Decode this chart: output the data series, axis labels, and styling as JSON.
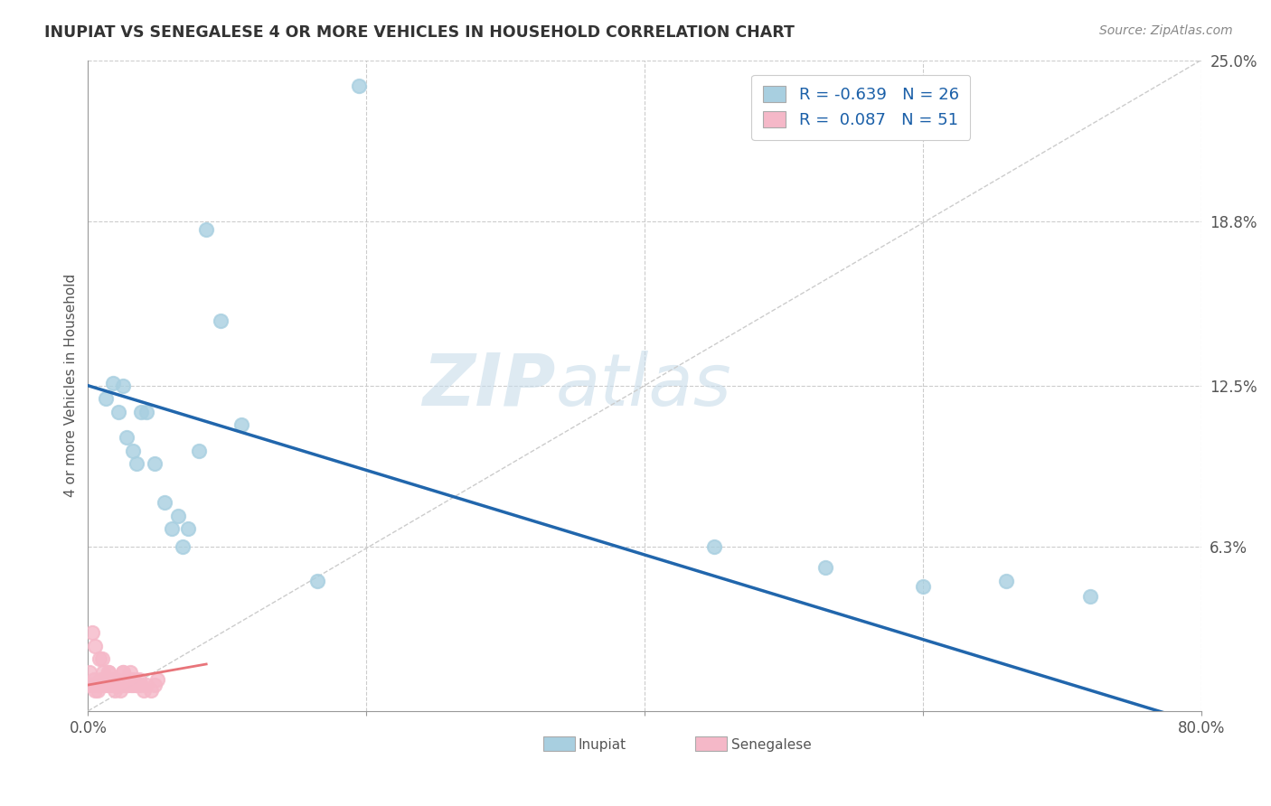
{
  "title": "INUPIAT VS SENEGALESE 4 OR MORE VEHICLES IN HOUSEHOLD CORRELATION CHART",
  "source": "Source: ZipAtlas.com",
  "ylabel": "4 or more Vehicles in Household",
  "xlim": [
    0.0,
    0.8
  ],
  "ylim": [
    0.0,
    0.25
  ],
  "xticks": [
    0.0,
    0.2,
    0.4,
    0.6,
    0.8
  ],
  "xticklabels": [
    "0.0%",
    "",
    "",
    "",
    "80.0%"
  ],
  "ytick_vals": [
    0.063,
    0.125,
    0.188,
    0.25
  ],
  "yticklabels": [
    "6.3%",
    "12.5%",
    "18.8%",
    "25.0%"
  ],
  "watermark_zip": "ZIP",
  "watermark_atlas": "atlas",
  "inupiat_color": "#a8cfe0",
  "senegalese_color": "#f5b8c8",
  "inupiat_line_color": "#2166ac",
  "senegalese_line_color": "#e8747a",
  "dashed_line_color": "#cccccc",
  "r_inupiat": -0.639,
  "n_inupiat": 26,
  "r_senegalese": 0.087,
  "n_senegalese": 51,
  "inupiat_x": [
    0.013,
    0.018,
    0.022,
    0.025,
    0.028,
    0.032,
    0.035,
    0.038,
    0.042,
    0.048,
    0.055,
    0.06,
    0.065,
    0.068,
    0.072,
    0.08,
    0.085,
    0.095,
    0.11,
    0.165,
    0.195,
    0.45,
    0.53,
    0.6,
    0.66,
    0.72
  ],
  "inupiat_y": [
    0.12,
    0.126,
    0.115,
    0.125,
    0.105,
    0.1,
    0.095,
    0.115,
    0.115,
    0.095,
    0.08,
    0.07,
    0.075,
    0.063,
    0.07,
    0.1,
    0.185,
    0.15,
    0.11,
    0.05,
    0.24,
    0.063,
    0.055,
    0.048,
    0.05,
    0.044
  ],
  "senegalese_x": [
    0.001,
    0.002,
    0.003,
    0.004,
    0.005,
    0.006,
    0.007,
    0.008,
    0.009,
    0.01,
    0.011,
    0.012,
    0.013,
    0.014,
    0.015,
    0.016,
    0.017,
    0.018,
    0.019,
    0.02,
    0.021,
    0.022,
    0.023,
    0.024,
    0.025,
    0.026,
    0.027,
    0.028,
    0.029,
    0.03,
    0.031,
    0.032,
    0.033,
    0.034,
    0.035,
    0.036,
    0.037,
    0.038,
    0.04,
    0.042,
    0.045,
    0.048,
    0.05,
    0.005,
    0.01,
    0.015,
    0.02,
    0.025,
    0.03,
    0.003,
    0.008
  ],
  "senegalese_y": [
    0.015,
    0.01,
    0.01,
    0.012,
    0.008,
    0.01,
    0.008,
    0.01,
    0.012,
    0.01,
    0.015,
    0.01,
    0.012,
    0.01,
    0.015,
    0.01,
    0.012,
    0.01,
    0.008,
    0.012,
    0.01,
    0.01,
    0.008,
    0.01,
    0.015,
    0.01,
    0.012,
    0.01,
    0.01,
    0.012,
    0.01,
    0.01,
    0.012,
    0.01,
    0.01,
    0.01,
    0.012,
    0.01,
    0.008,
    0.01,
    0.008,
    0.01,
    0.012,
    0.025,
    0.02,
    0.015,
    0.01,
    0.015,
    0.015,
    0.03,
    0.02
  ],
  "inupiat_line_x0": 0.0,
  "inupiat_line_y0": 0.125,
  "inupiat_line_x1": 0.8,
  "inupiat_line_y1": -0.005,
  "senegalese_line_x0": 0.0,
  "senegalese_line_y0": 0.01,
  "senegalese_line_x1": 0.085,
  "senegalese_line_y1": 0.018
}
